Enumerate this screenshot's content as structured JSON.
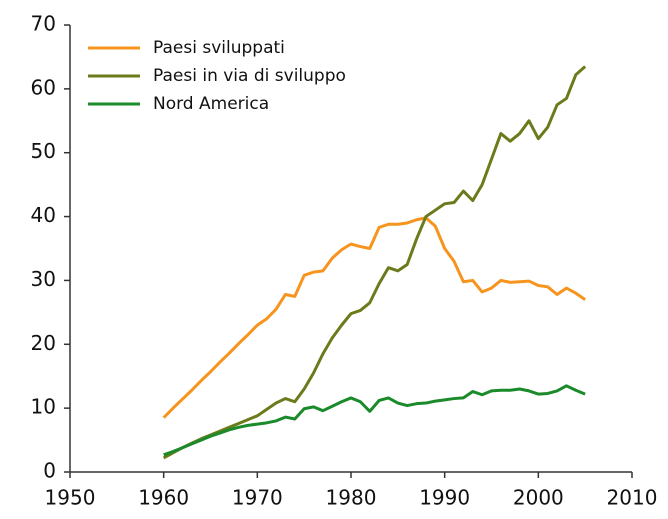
{
  "chart_data": {
    "type": "line",
    "x": [
      1960,
      1961,
      1962,
      1963,
      1964,
      1965,
      1966,
      1967,
      1968,
      1969,
      1970,
      1971,
      1972,
      1973,
      1974,
      1975,
      1976,
      1977,
      1978,
      1979,
      1980,
      1981,
      1982,
      1983,
      1984,
      1985,
      1986,
      1987,
      1988,
      1989,
      1990,
      1991,
      1992,
      1993,
      1994,
      1995,
      1996,
      1997,
      1998,
      1999,
      2000,
      2001,
      2002,
      2003,
      2004,
      2005
    ],
    "series": [
      {
        "name": "Paesi sviluppati",
        "color": "#f7941d",
        "values": [
          8.5,
          10,
          11.4,
          12.8,
          14.3,
          15.7,
          17.2,
          18.6,
          20.1,
          21.5,
          23,
          24,
          25.5,
          27.8,
          27.5,
          30.8,
          31.3,
          31.5,
          33.5,
          34.8,
          35.7,
          35.3,
          35,
          38.3,
          38.8,
          38.8,
          39,
          39.5,
          39.8,
          38.5,
          35,
          33,
          29.8,
          30,
          28.2,
          28.8,
          30,
          29.7,
          29.8,
          29.9,
          29.2,
          29,
          27.8,
          28.8,
          28,
          27
        ]
      },
      {
        "name": "Paesi in via di sviluppo",
        "color": "#6b7a1b",
        "values": [
          2.2,
          3,
          3.8,
          4.5,
          5.2,
          5.8,
          6.4,
          7,
          7.6,
          8.2,
          8.8,
          9.8,
          10.8,
          11.5,
          11,
          13,
          15.5,
          18.5,
          21,
          23,
          24.8,
          25.3,
          26.5,
          29.5,
          32,
          31.5,
          32.5,
          36.5,
          40,
          41,
          42,
          42.2,
          44,
          42.5,
          45,
          49,
          53,
          51.8,
          53,
          55,
          52.2,
          54,
          57.5,
          58.5,
          62.2,
          63.5
        ]
      },
      {
        "name": "Nord America",
        "color": "#1a8a2a",
        "values": [
          2.7,
          3.2,
          3.8,
          4.4,
          5,
          5.6,
          6.1,
          6.6,
          7,
          7.3,
          7.5,
          7.7,
          8,
          8.6,
          8.3,
          9.9,
          10.2,
          9.6,
          10.3,
          11,
          11.6,
          11,
          9.5,
          11.2,
          11.6,
          10.8,
          10.4,
          10.7,
          10.8,
          11.1,
          11.3,
          11.5,
          11.6,
          12.6,
          12.1,
          12.7,
          12.8,
          12.8,
          13,
          12.7,
          12.2,
          12.3,
          12.7,
          13.5,
          12.8,
          12.2
        ]
      }
    ],
    "xlim": [
      1950,
      2010
    ],
    "xticks": [
      1950,
      1960,
      1970,
      1980,
      1990,
      2000,
      2010
    ],
    "ylim": [
      0,
      70
    ],
    "yticks": [
      0,
      10,
      20,
      30,
      40,
      50,
      60,
      70
    ],
    "legend": "upper-left"
  }
}
